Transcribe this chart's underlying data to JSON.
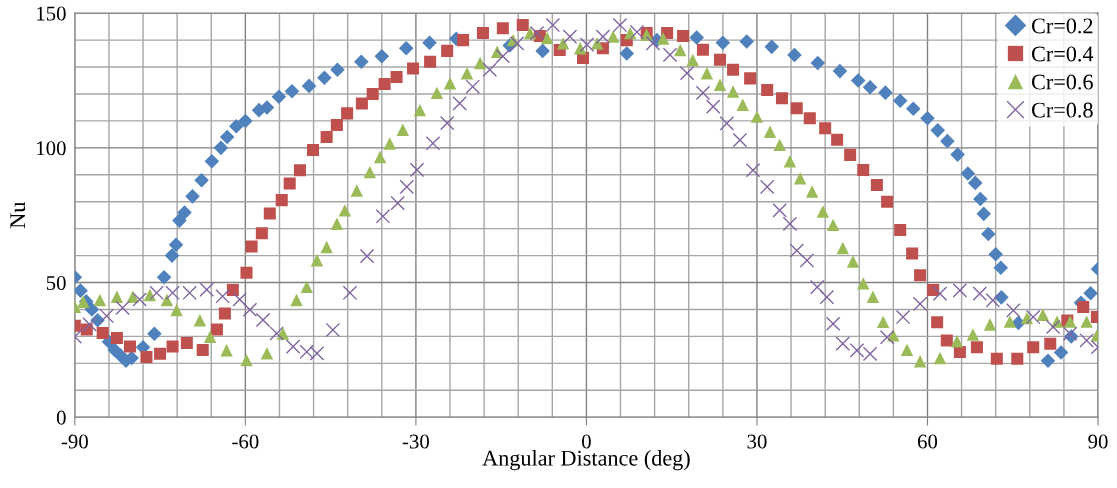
{
  "chart_data": {
    "type": "scatter",
    "xlabel": "Angular Distance (deg)",
    "ylabel": "Nu",
    "xlim": [
      -90,
      90
    ],
    "xticks": [
      -90,
      -60,
      -30,
      0,
      30,
      60,
      90
    ],
    "ylim": [
      0,
      150
    ],
    "yticks": [
      0,
      50,
      100,
      150
    ],
    "grid": true,
    "legend": "top right",
    "series": [
      {
        "name": "Cr=0.2",
        "color": "#4f81bd",
        "marker": "diamond",
        "x": [
          -90,
          -89,
          -88,
          -87,
          -86,
          -85,
          -84,
          -83,
          -82,
          -81,
          -80,
          -78,
          -76,
          -74.3,
          -72.9,
          -72.2,
          -71.6,
          -70.7,
          -69.3,
          -67.7,
          -65.9,
          -64.3,
          -63.2,
          -61.6,
          -60,
          -57.6,
          -56.2,
          -54.1,
          -51.8,
          -48.8,
          -46.1,
          -43.8,
          -39.6,
          -36,
          -31.7,
          -27.6,
          -22.9,
          -13.5,
          -7.7,
          7.1,
          12.4,
          19.4,
          24,
          28.2,
          32.6,
          36.6,
          40.7,
          44.6,
          47.8,
          49.9,
          52.6,
          55.2,
          57.5,
          60,
          61.8,
          63.5,
          65.3,
          67.1,
          68.4,
          69.3,
          69.9,
          70.7,
          72,
          72.9,
          73,
          76,
          79,
          81.2,
          83.5,
          85.3,
          87,
          88.7,
          90
        ],
        "values": [
          52,
          47,
          43,
          40,
          36,
          null,
          28,
          25,
          23,
          21,
          22,
          26,
          31,
          52,
          60,
          64,
          73,
          76,
          82,
          88,
          95,
          100,
          104,
          108,
          110,
          114,
          115,
          119,
          121,
          123,
          126,
          129,
          132,
          134,
          137,
          139,
          140.5,
          138,
          136,
          135,
          140,
          141,
          139,
          139.5,
          137.5,
          134.5,
          131.5,
          128.5,
          125,
          122.5,
          120.5,
          117.5,
          114.5,
          111,
          106.5,
          102.5,
          97.5,
          90.5,
          87,
          81,
          75.5,
          68,
          60.5,
          55.5,
          44.5,
          35,
          null,
          21,
          24,
          30,
          42.5,
          46,
          55
        ]
      },
      {
        "name": "Cr=0.4",
        "color": "#c0504d",
        "marker": "square",
        "x": [
          -90,
          -87.9,
          -85.1,
          -82.6,
          -80.3,
          -77.4,
          -75,
          -72.8,
          -70.3,
          -67.5,
          -65,
          -63.6,
          -62.2,
          -59.8,
          -58.9,
          -57.1,
          -55.7,
          -53.6,
          -52.2,
          -50.4,
          -48.1,
          -45.7,
          -43.9,
          -42.1,
          -39.5,
          -37.6,
          -35.5,
          -33.4,
          -30.5,
          -27.5,
          -24.5,
          -21.7,
          -18.2,
          -14.7,
          -11.2,
          -8.2,
          -4.7,
          -0.6,
          2.9,
          7.1,
          10.6,
          14.2,
          17,
          20.5,
          23.5,
          25.8,
          28.8,
          31.8,
          34.4,
          37,
          39.3,
          42,
          44.1,
          46.4,
          48.7,
          51.1,
          52.9,
          55.2,
          57.3,
          58.7,
          61,
          61.7,
          63.4,
          65.7,
          68.7,
          72.2,
          75.8,
          78.6,
          81.6,
          84.6,
          87.4,
          89.8
        ],
        "values": [
          34,
          32.6,
          31.3,
          29.4,
          26.3,
          22.4,
          23.6,
          26.3,
          27.6,
          25,
          32.6,
          38.5,
          47.2,
          53.6,
          63.4,
          68.3,
          75.6,
          80.6,
          86.8,
          91.7,
          99.2,
          104,
          108.5,
          112.8,
          116.5,
          120,
          123.7,
          126.3,
          129.5,
          132,
          136,
          140,
          142.6,
          144.4,
          145.6,
          141.5,
          136.3,
          133.4,
          137,
          140,
          142.6,
          142.6,
          141.5,
          136.4,
          132.7,
          129,
          125.8,
          121.5,
          118.4,
          114.7,
          111,
          107.3,
          103,
          97.4,
          91.8,
          86.2,
          80,
          69.5,
          60.8,
          52.7,
          47.2,
          35.3,
          28.5,
          24.2,
          26,
          21.7,
          21.7,
          26,
          27.3,
          35.9,
          40.9,
          37.2
        ]
      },
      {
        "name": "Cr=0.6",
        "color": "#9bbb59",
        "marker": "triangle",
        "x": [
          -90,
          -88.5,
          -85.6,
          -82.6,
          -79.8,
          -76.8,
          -73.8,
          -72.1,
          -68,
          -66.2,
          -63.3,
          -59.8,
          -56.2,
          -53.4,
          -51,
          -49.2,
          -47.4,
          -45.7,
          -43.9,
          -42.5,
          -40.4,
          -38.1,
          -36.3,
          -34.6,
          -32.3,
          -29.3,
          -26.3,
          -24,
          -21,
          -18.7,
          -15.7,
          -12.9,
          -9.9,
          -6.9,
          -4.1,
          -1.1,
          1.9,
          4.7,
          7.7,
          10.6,
          13.5,
          16.5,
          18.7,
          21.2,
          23.5,
          25.8,
          27.5,
          30,
          32.3,
          34,
          35.8,
          37.6,
          39.7,
          41.6,
          43.4,
          45.1,
          46.9,
          48.7,
          50.4,
          52.2,
          54,
          56.4,
          58.7,
          62.2,
          65.2,
          68,
          71,
          74.5,
          77.5,
          80.3,
          82.8,
          85.1,
          88,
          89.8
        ],
        "values": [
          41,
          42.9,
          43.5,
          44.7,
          44.7,
          45.4,
          43.5,
          39.8,
          36,
          29.9,
          24.9,
          21.2,
          23.7,
          31.1,
          43.5,
          48.4,
          58.3,
          63.2,
          71.8,
          76.8,
          84.2,
          91,
          96.6,
          101.6,
          106.7,
          114,
          120.4,
          124,
          127.7,
          131.5,
          135.7,
          140,
          142.6,
          140.8,
          138.8,
          137,
          138.8,
          141.3,
          142.6,
          142,
          140.6,
          136.3,
          132.6,
          127.7,
          123.4,
          120.9,
          116,
          111.6,
          106,
          101.1,
          95,
          88.7,
          83.8,
          76.4,
          71.4,
          62.8,
          57.8,
          49.7,
          44.7,
          35.4,
          30.4,
          25,
          20.8,
          22,
          28.2,
          30.7,
          34.4,
          35.5,
          36.8,
          38,
          35.5,
          35.5,
          35.5,
          30.4
        ]
      },
      {
        "name": "Cr=0.8",
        "color": "#8064a2",
        "marker": "cross",
        "x": [
          -90,
          -87.4,
          -84.4,
          -81.6,
          -78.6,
          -75.6,
          -72.8,
          -69.8,
          -66.8,
          -64,
          -61,
          -59.2,
          -56.9,
          -54.5,
          -51.6,
          -49.2,
          -47.4,
          -44.6,
          -41.6,
          -38.6,
          -35.8,
          -33.2,
          -31.6,
          -29.8,
          -27,
          -24.5,
          -22.3,
          -20,
          -17,
          -14.7,
          -12.2,
          -8.7,
          -5.9,
          -2.9,
          0.1,
          2.9,
          5.9,
          8.9,
          11.7,
          14.7,
          17.7,
          20.5,
          22.3,
          24.7,
          27,
          29.3,
          31.8,
          34,
          35.8,
          37,
          38.8,
          40.6,
          42.3,
          43.4,
          45.1,
          47.6,
          49.9,
          52.9,
          55.7,
          58.7,
          62.2,
          65.7,
          69.2,
          71.5,
          75.1,
          78.6,
          82.1,
          85.1,
          88,
          90
        ],
        "values": [
          29.9,
          34.5,
          37.6,
          40.6,
          43.7,
          46.2,
          46.2,
          46.2,
          47.4,
          44.9,
          43.7,
          39.9,
          36.1,
          31.1,
          26.2,
          24.3,
          23.7,
          32.4,
          46.2,
          59.8,
          74.6,
          79.5,
          85.5,
          91.8,
          101.7,
          109.2,
          116.5,
          122.7,
          129,
          134,
          138.8,
          142.6,
          145.6,
          141.3,
          138.3,
          141.3,
          145.6,
          143,
          138.8,
          134.5,
          127.7,
          120.4,
          115.3,
          109.1,
          102.9,
          91.7,
          85.5,
          76.8,
          71.8,
          61.9,
          58.2,
          48.3,
          44.6,
          34.7,
          27.3,
          24.8,
          23.5,
          29.7,
          37.2,
          42.1,
          45.9,
          47.1,
          45.9,
          43.4,
          39.7,
          37.2,
          33.5,
          31,
          28.5,
          26
        ]
      }
    ]
  }
}
